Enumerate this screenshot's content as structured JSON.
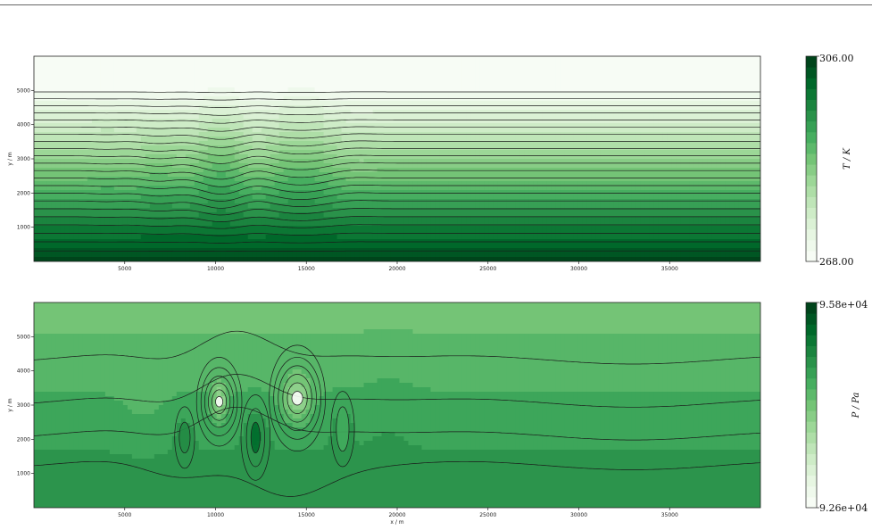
{
  "chart_data": [
    {
      "type": "heatmap",
      "title": "",
      "xlabel": "",
      "ylabel": "y / m",
      "xlim": [
        0,
        40000
      ],
      "ylim": [
        0,
        6000
      ],
      "x_ticks": [
        "5000",
        "10000",
        "15000",
        "20000",
        "25000",
        "30000",
        "35000"
      ],
      "y_ticks": [
        "1000",
        "2000",
        "3000",
        "4000",
        "5000"
      ],
      "colorbar": {
        "label": "T / K",
        "min_label": "268.00",
        "max_label": "306.00",
        "min": 268.0,
        "max": 306.0
      },
      "colormap": "Greens",
      "grid": false
    },
    {
      "type": "heatmap",
      "title": "",
      "xlabel": "x / m",
      "ylabel": "y / m",
      "xlim": [
        0,
        40000
      ],
      "ylim": [
        0,
        6000
      ],
      "x_ticks": [
        "5000",
        "10000",
        "15000",
        "20000",
        "25000",
        "30000",
        "35000"
      ],
      "y_ticks": [
        "1000",
        "2000",
        "3000",
        "4000",
        "5000"
      ],
      "colorbar": {
        "label": "P / Pa",
        "min_label": "9.26e+04",
        "max_label": "9.58e+04",
        "min": 92600,
        "max": 95800
      },
      "colormap": "Greens",
      "grid": false
    }
  ],
  "colors": {
    "greens": [
      "#f7fcf5",
      "#e5f5e0",
      "#c7e9c0",
      "#a1d99b",
      "#74c476",
      "#41ab5d",
      "#238b45",
      "#006d2c",
      "#00441b"
    ],
    "contour_line": "#1a1a1a"
  }
}
